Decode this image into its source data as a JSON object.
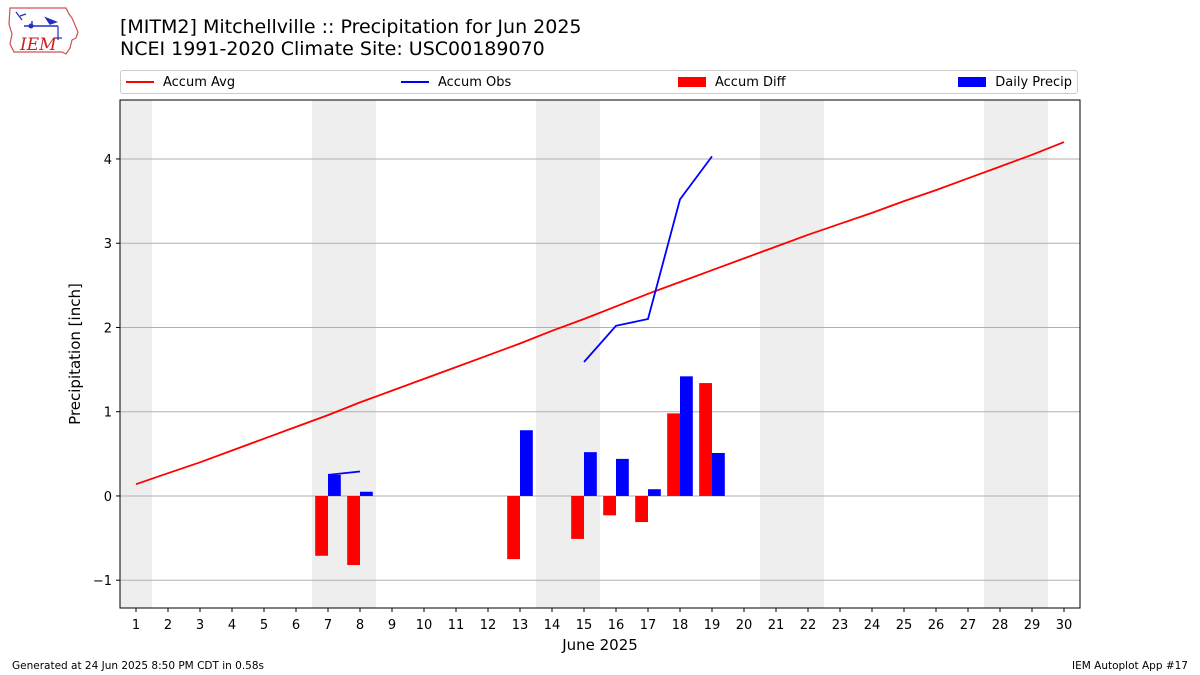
{
  "logo": {
    "text": "IEM"
  },
  "header": {
    "title_line1": "[MITM2] Mitchellville :: Precipitation for Jun 2025",
    "title_line2": "NCEI 1991-2020 Climate Site: USC00189070"
  },
  "legend": {
    "accum_avg": "Accum Avg",
    "accum_obs": "Accum Obs",
    "accum_diff": "Accum Diff",
    "daily_precip": "Daily Precip"
  },
  "footer": {
    "generated": "Generated at 24 Jun 2025 8:50 PM CDT in 0.58s",
    "app": "IEM Autoplot App #17"
  },
  "colors": {
    "accum_avg": "#ff0000",
    "accum_obs": "#0000ff",
    "accum_diff": "#ff0000",
    "daily_precip": "#0000ff",
    "weekend_band": "#eeeeee",
    "grid": "#b0b0b0"
  },
  "chart_data": {
    "type": "bar",
    "xlabel": "June 2025",
    "ylabel": "Precipitation [inch]",
    "xlim": [
      0.5,
      30.5
    ],
    "ylim": [
      -1.33,
      4.7
    ],
    "yticks": [
      -1,
      0,
      1,
      2,
      3,
      4
    ],
    "ytick_labels": [
      "−1",
      "0",
      "1",
      "2",
      "3",
      "4"
    ],
    "days": [
      1,
      2,
      3,
      4,
      5,
      6,
      7,
      8,
      9,
      10,
      11,
      12,
      13,
      14,
      15,
      16,
      17,
      18,
      19,
      20,
      21,
      22,
      23,
      24,
      25,
      26,
      27,
      28,
      29,
      30
    ],
    "xtick_labels": [
      "1",
      "2",
      "3",
      "4",
      "5",
      "6",
      "7",
      "8",
      "9",
      "10",
      "11",
      "12",
      "13",
      "14",
      "15",
      "16",
      "17",
      "18",
      "19",
      "20",
      "21",
      "22",
      "23",
      "24",
      "25",
      "26",
      "27",
      "28",
      "29",
      "30"
    ],
    "weekend_day_pairs": [
      [
        0.5,
        1.5
      ],
      [
        6.5,
        8.5
      ],
      [
        13.5,
        15.5
      ],
      [
        20.5,
        22.5
      ],
      [
        27.5,
        29.5
      ]
    ],
    "series": [
      {
        "name": "Accum Avg",
        "kind": "line",
        "x": [
          1,
          2,
          3,
          4,
          5,
          6,
          7,
          8,
          9,
          10,
          11,
          12,
          13,
          14,
          15,
          16,
          17,
          18,
          19,
          20,
          21,
          22,
          23,
          24,
          25,
          26,
          27,
          28,
          29,
          30
        ],
        "values": [
          0.14,
          0.27,
          0.4,
          0.54,
          0.68,
          0.82,
          0.96,
          1.11,
          1.25,
          1.39,
          1.53,
          1.67,
          1.81,
          1.96,
          2.1,
          2.25,
          2.4,
          2.54,
          2.68,
          2.82,
          2.96,
          3.1,
          3.23,
          3.36,
          3.5,
          3.63,
          3.77,
          3.91,
          4.05,
          4.2
        ]
      },
      {
        "name": "Accum Obs",
        "kind": "line",
        "segments": [
          {
            "x": [
              7,
              8
            ],
            "values": [
              0.25,
              0.29
            ]
          },
          {
            "x": [
              15,
              16,
              17,
              18,
              19
            ],
            "values": [
              1.59,
              2.02,
              2.1,
              3.52,
              4.03
            ]
          }
        ]
      },
      {
        "name": "Accum Diff",
        "kind": "bar",
        "offset": "left",
        "x": [
          7,
          8,
          13,
          15,
          16,
          17,
          18,
          19
        ],
        "values": [
          -0.71,
          -0.82,
          -0.75,
          -0.51,
          -0.23,
          -0.31,
          0.98,
          1.34
        ]
      },
      {
        "name": "Daily Precip",
        "kind": "bar",
        "offset": "right",
        "x": [
          7,
          8,
          13,
          15,
          16,
          17,
          18,
          19
        ],
        "values": [
          0.25,
          0.05,
          0.78,
          0.52,
          0.44,
          0.08,
          1.42,
          0.51
        ]
      }
    ]
  }
}
